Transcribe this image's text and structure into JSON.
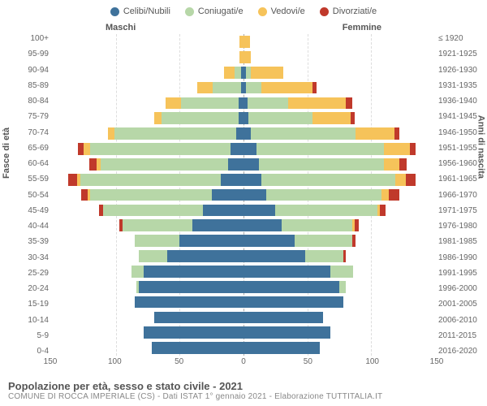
{
  "legend": [
    {
      "label": "Celibi/Nubili",
      "color": "#3f729b"
    },
    {
      "label": "Coniugati/e",
      "color": "#b7d7a8"
    },
    {
      "label": "Vedovi/e",
      "color": "#f6c35a"
    },
    {
      "label": "Divorziati/e",
      "color": "#c0392b"
    }
  ],
  "gender_left": "Maschi",
  "gender_right": "Femmine",
  "ylabel_left": "Fasce di età",
  "ylabel_right": "Anni di nascita",
  "xmax": 150,
  "xticks": [
    150,
    100,
    50,
    0,
    50,
    100,
    150
  ],
  "footer_title": "Popolazione per età, sesso e stato civile - 2021",
  "footer_sub": "COMUNE DI ROCCA IMPERIALE (CS) - Dati ISTAT 1° gennaio 2021 - Elaborazione TUTTITALIA.IT",
  "rows": [
    {
      "age": "100+",
      "birth": "≤ 1920",
      "m": [
        0,
        0,
        3,
        0
      ],
      "f": [
        0,
        0,
        5,
        0
      ]
    },
    {
      "age": "95-99",
      "birth": "1921-1925",
      "m": [
        0,
        0,
        3,
        0
      ],
      "f": [
        0,
        0,
        6,
        0
      ]
    },
    {
      "age": "90-94",
      "birth": "1926-1930",
      "m": [
        2,
        5,
        8,
        0
      ],
      "f": [
        2,
        4,
        25,
        0
      ]
    },
    {
      "age": "85-89",
      "birth": "1931-1935",
      "m": [
        2,
        22,
        12,
        0
      ],
      "f": [
        2,
        12,
        40,
        3
      ]
    },
    {
      "age": "80-84",
      "birth": "1936-1940",
      "m": [
        4,
        45,
        12,
        0
      ],
      "f": [
        3,
        32,
        45,
        5
      ]
    },
    {
      "age": "75-79",
      "birth": "1941-1945",
      "m": [
        4,
        60,
        6,
        0
      ],
      "f": [
        4,
        50,
        30,
        3
      ]
    },
    {
      "age": "70-74",
      "birth": "1946-1950",
      "m": [
        6,
        95,
        5,
        0
      ],
      "f": [
        6,
        82,
        30,
        4
      ]
    },
    {
      "age": "65-69",
      "birth": "1951-1955",
      "m": [
        10,
        110,
        5,
        5
      ],
      "f": [
        10,
        100,
        20,
        5
      ]
    },
    {
      "age": "60-64",
      "birth": "1956-1960",
      "m": [
        12,
        100,
        3,
        6
      ],
      "f": [
        12,
        98,
        12,
        6
      ]
    },
    {
      "age": "55-59",
      "birth": "1961-1965",
      "m": [
        18,
        110,
        2,
        7
      ],
      "f": [
        14,
        105,
        8,
        8
      ]
    },
    {
      "age": "50-54",
      "birth": "1966-1970",
      "m": [
        25,
        95,
        2,
        5
      ],
      "f": [
        18,
        90,
        6,
        8
      ]
    },
    {
      "age": "45-49",
      "birth": "1971-1975",
      "m": [
        32,
        78,
        0,
        3
      ],
      "f": [
        25,
        80,
        2,
        4
      ]
    },
    {
      "age": "40-44",
      "birth": "1976-1980",
      "m": [
        40,
        55,
        0,
        2
      ],
      "f": [
        30,
        55,
        2,
        3
      ]
    },
    {
      "age": "35-39",
      "birth": "1981-1985",
      "m": [
        50,
        35,
        0,
        0
      ],
      "f": [
        40,
        45,
        0,
        3
      ]
    },
    {
      "age": "30-34",
      "birth": "1986-1990",
      "m": [
        60,
        22,
        0,
        0
      ],
      "f": [
        48,
        30,
        0,
        2
      ]
    },
    {
      "age": "25-29",
      "birth": "1991-1995",
      "m": [
        78,
        10,
        0,
        0
      ],
      "f": [
        68,
        18,
        0,
        0
      ]
    },
    {
      "age": "20-24",
      "birth": "1996-2000",
      "m": [
        82,
        2,
        0,
        0
      ],
      "f": [
        75,
        5,
        0,
        0
      ]
    },
    {
      "age": "15-19",
      "birth": "2001-2005",
      "m": [
        85,
        0,
        0,
        0
      ],
      "f": [
        78,
        0,
        0,
        0
      ]
    },
    {
      "age": "10-14",
      "birth": "2006-2010",
      "m": [
        70,
        0,
        0,
        0
      ],
      "f": [
        62,
        0,
        0,
        0
      ]
    },
    {
      "age": "5-9",
      "birth": "2011-2015",
      "m": [
        78,
        0,
        0,
        0
      ],
      "f": [
        68,
        0,
        0,
        0
      ]
    },
    {
      "age": "0-4",
      "birth": "2016-2020",
      "m": [
        72,
        0,
        0,
        0
      ],
      "f": [
        60,
        0,
        0,
        0
      ]
    }
  ]
}
